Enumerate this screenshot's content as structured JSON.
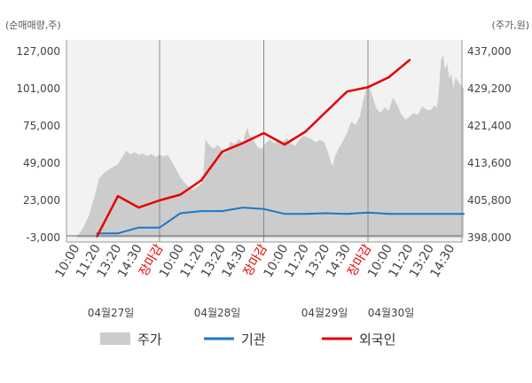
{
  "chart_data": {
    "type": "line",
    "left_axis_unit": "(순매매량,주)",
    "right_axis_unit": "(주가,원)",
    "y_left": {
      "ticks": [
        "127,000",
        "101,000",
        "75,000",
        "49,000",
        "23,000",
        "-3,000"
      ],
      "values": [
        127000,
        101000,
        75000,
        49000,
        23000,
        -3000
      ],
      "range": [
        -3000,
        127000
      ]
    },
    "y_right": {
      "ticks": [
        "437,000",
        "429,200",
        "421,400",
        "413,600",
        "405,800",
        "398,000"
      ],
      "values": [
        437000,
        429200,
        421400,
        413600,
        405800,
        398000
      ],
      "range": [
        398000,
        437000
      ]
    },
    "x_ticks": [
      {
        "label": "10:00",
        "close": false
      },
      {
        "label": "11:20",
        "close": false
      },
      {
        "label": "13:20",
        "close": false
      },
      {
        "label": "14:30",
        "close": false
      },
      {
        "label": "장마감",
        "close": true
      },
      {
        "label": "10:00",
        "close": false
      },
      {
        "label": "11:20",
        "close": false
      },
      {
        "label": "13:20",
        "close": false
      },
      {
        "label": "14:30",
        "close": false
      },
      {
        "label": "장마감",
        "close": true
      },
      {
        "label": "10:00",
        "close": false
      },
      {
        "label": "11:20",
        "close": false
      },
      {
        "label": "13:20",
        "close": false
      },
      {
        "label": "14:30",
        "close": false
      },
      {
        "label": "장마감",
        "close": true
      },
      {
        "label": "10:00",
        "close": false
      },
      {
        "label": "11:20",
        "close": false
      },
      {
        "label": "13:20",
        "close": false
      },
      {
        "label": "14:30",
        "close": false
      }
    ],
    "dates": [
      "04월27일",
      "04월28일",
      "04월29일",
      "04월30일"
    ],
    "series": [
      {
        "name": "주가",
        "type": "area",
        "color": "#cccccc",
        "axis": "right",
        "points": [
          [
            0.0,
            398000
          ],
          [
            0.3,
            399800
          ],
          [
            0.6,
            402500
          ],
          [
            0.9,
            407000
          ],
          [
            1.1,
            410500
          ],
          [
            1.4,
            411800
          ],
          [
            1.7,
            412600
          ],
          [
            2.0,
            413400
          ],
          [
            2.2,
            414800
          ],
          [
            2.4,
            416200
          ],
          [
            2.6,
            415400
          ],
          [
            2.8,
            415900
          ],
          [
            3.0,
            415300
          ],
          [
            3.2,
            415600
          ],
          [
            3.4,
            415100
          ],
          [
            3.6,
            415500
          ],
          [
            3.8,
            414900
          ],
          [
            4.0,
            415400
          ],
          [
            4.2,
            415000
          ],
          [
            4.4,
            415300
          ],
          [
            4.6,
            413800
          ],
          [
            4.8,
            412200
          ],
          [
            5.0,
            410600
          ],
          [
            5.2,
            409500
          ],
          [
            5.4,
            408600
          ],
          [
            5.6,
            407900
          ],
          [
            5.8,
            408600
          ],
          [
            6.0,
            409300
          ],
          [
            6.1,
            411000
          ],
          [
            6.2,
            418600
          ],
          [
            6.4,
            417300
          ],
          [
            6.6,
            416600
          ],
          [
            6.8,
            417500
          ],
          [
            7.0,
            416200
          ],
          [
            7.2,
            415700
          ],
          [
            7.4,
            418100
          ],
          [
            7.6,
            417600
          ],
          [
            7.8,
            418600
          ],
          [
            8.0,
            418000
          ],
          [
            8.2,
            421100
          ],
          [
            8.3,
            419600
          ],
          [
            8.5,
            418500
          ],
          [
            8.7,
            417000
          ],
          [
            8.9,
            416600
          ],
          [
            9.1,
            417800
          ],
          [
            9.3,
            418600
          ],
          [
            9.5,
            417700
          ],
          [
            9.7,
            418400
          ],
          [
            9.9,
            418100
          ],
          [
            10.1,
            418800
          ],
          [
            10.3,
            417700
          ],
          [
            10.5,
            417200
          ],
          [
            10.7,
            418500
          ],
          [
            10.9,
            419300
          ],
          [
            11.1,
            419000
          ],
          [
            11.3,
            418600
          ],
          [
            11.5,
            417900
          ],
          [
            11.7,
            418500
          ],
          [
            11.9,
            418000
          ],
          [
            12.1,
            415700
          ],
          [
            12.2,
            414000
          ],
          [
            12.3,
            413000
          ],
          [
            12.4,
            414800
          ],
          [
            12.6,
            416700
          ],
          [
            12.8,
            418200
          ],
          [
            13.0,
            420000
          ],
          [
            13.2,
            422300
          ],
          [
            13.4,
            421600
          ],
          [
            13.6,
            423200
          ],
          [
            13.8,
            427200
          ],
          [
            14.0,
            430600
          ],
          [
            14.2,
            427800
          ],
          [
            14.4,
            425100
          ],
          [
            14.6,
            424100
          ],
          [
            14.8,
            425300
          ],
          [
            15.0,
            424600
          ],
          [
            15.2,
            427300
          ],
          [
            15.4,
            425900
          ],
          [
            15.6,
            423800
          ],
          [
            15.8,
            422700
          ],
          [
            16.0,
            423300
          ],
          [
            16.2,
            424100
          ],
          [
            16.4,
            423700
          ],
          [
            16.6,
            425500
          ],
          [
            16.8,
            424800
          ],
          [
            17.0,
            424700
          ],
          [
            17.2,
            425700
          ],
          [
            17.3,
            425100
          ],
          [
            17.4,
            428600
          ],
          [
            17.5,
            435000
          ],
          [
            17.6,
            436400
          ],
          [
            17.7,
            433200
          ],
          [
            17.8,
            434600
          ],
          [
            17.9,
            431400
          ],
          [
            18.0,
            432200
          ],
          [
            18.1,
            429300
          ],
          [
            18.2,
            431600
          ],
          [
            18.4,
            430200
          ],
          [
            18.5,
            429700
          ],
          [
            18.6,
            429200
          ]
        ]
      },
      {
        "name": "기관",
        "type": "line",
        "color": "#1a78c8",
        "axis": "left",
        "points": [
          [
            1.0,
            0
          ],
          [
            2.0,
            0
          ],
          [
            3.0,
            4000
          ],
          [
            4.0,
            4000
          ],
          [
            5.0,
            14000
          ],
          [
            6.0,
            15500
          ],
          [
            7.0,
            15500
          ],
          [
            8.0,
            18000
          ],
          [
            9.0,
            17000
          ],
          [
            10.0,
            13500
          ],
          [
            11.0,
            13500
          ],
          [
            12.0,
            14000
          ],
          [
            13.0,
            13500
          ],
          [
            14.0,
            14500
          ],
          [
            15.0,
            13500
          ],
          [
            16.0,
            13500
          ],
          [
            17.0,
            13500
          ],
          [
            18.0,
            13500
          ],
          [
            18.6,
            13500
          ]
        ]
      },
      {
        "name": "외국인",
        "type": "line",
        "color": "#e60000",
        "axis": "left",
        "points": [
          [
            1.0,
            -2000
          ],
          [
            2.0,
            26000
          ],
          [
            3.0,
            18000
          ],
          [
            4.0,
            23000
          ],
          [
            5.0,
            27000
          ],
          [
            6.0,
            37000
          ],
          [
            7.0,
            57000
          ],
          [
            8.0,
            63000
          ],
          [
            9.0,
            70000
          ],
          [
            10.0,
            62000
          ],
          [
            11.0,
            71000
          ],
          [
            12.0,
            85000
          ],
          [
            13.0,
            99000
          ],
          [
            14.0,
            102000
          ],
          [
            15.0,
            109000
          ],
          [
            16.0,
            121000
          ]
        ]
      }
    ],
    "legend": [
      "주가",
      "기관",
      "외국인"
    ],
    "legend_position": "bottom",
    "grid": false
  }
}
